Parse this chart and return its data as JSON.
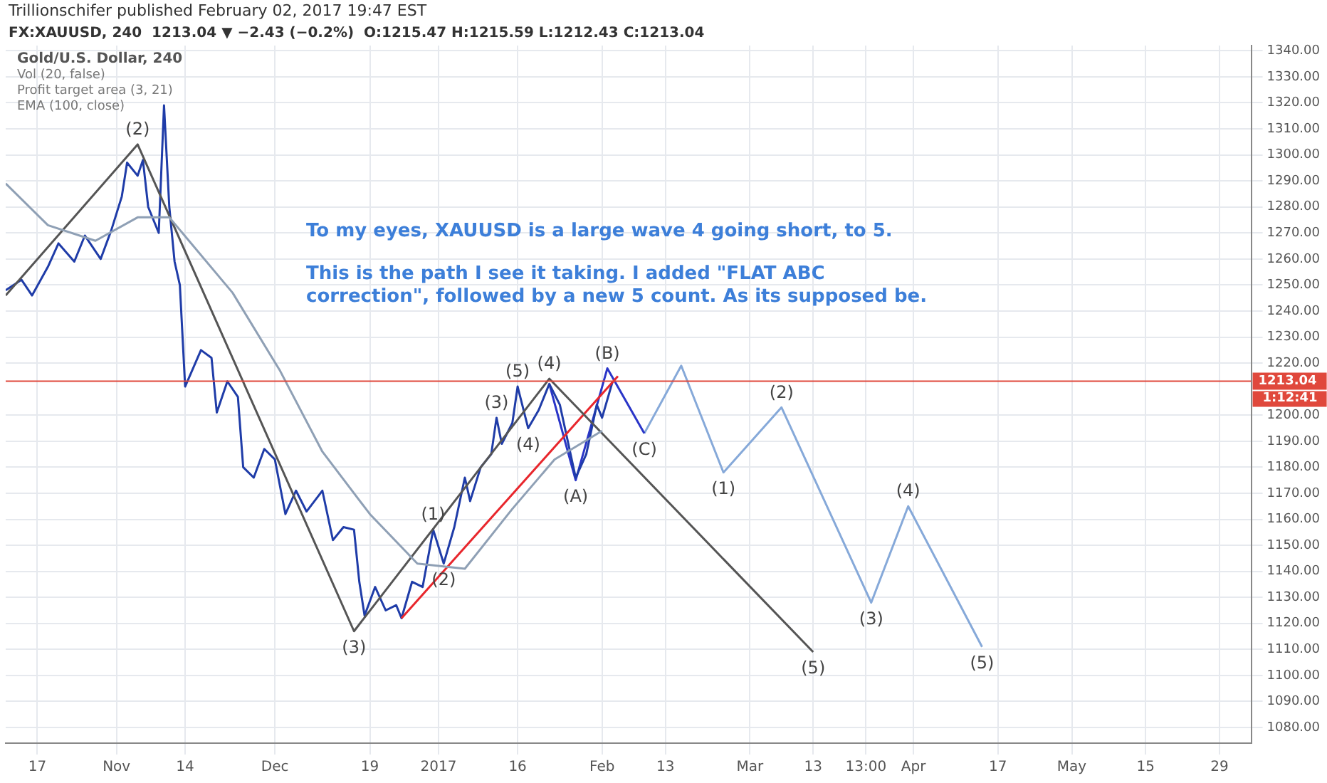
{
  "chart_data": {
    "type": "line",
    "title": "Gold/U.S. Dollar, 240",
    "subtitle": "FX:XAUUSD, 240  1213.04 ▼ −2.43 (−0.2%)  O:1215.47 H:1215.59 L:1212.43 C:1213.04",
    "annotations": [
      "Trillionschifer published February 02, 2017 19:47 EST",
      "Vol (20, false)",
      "Profit target area (3, 21)",
      "EMA (100, close)",
      "1:12:41",
      "To my eyes, XAUUSD is a large wave 4 going short, to 5.",
      "This is the path I see it taking. I added \"FLAT ABC correction\", followed by a new 5 count. As its supposed be.",
      {
        "text": "(2)",
        "x": "2016-11-05",
        "y": 1304
      },
      {
        "text": "(3)",
        "x": "2016-12-16",
        "y": 1117
      },
      {
        "text": "(4)",
        "x": "2017-01-22",
        "y": 1214
      },
      {
        "text": "(5)",
        "x": "2017-03-13",
        "y": 1109
      },
      {
        "text": "(1)",
        "x": "2016-12-31",
        "y": 1156
      },
      {
        "text": "(2)",
        "x": "2017-01-02",
        "y": 1143
      },
      {
        "text": "(3)",
        "x": "2017-01-12",
        "y": 1199
      },
      {
        "text": "(4)",
        "x": "2017-01-18",
        "y": 1195
      },
      {
        "text": "(5)",
        "x": "2017-01-16",
        "y": 1211
      },
      {
        "text": "(A)",
        "x": "2017-01-27",
        "y": 1175
      },
      {
        "text": "(B)",
        "x": "2017-02-02",
        "y": 1218
      },
      {
        "text": "(C)",
        "x": "2017-02-09",
        "y": 1193
      },
      {
        "text": "(1)",
        "x": "2017-02-24",
        "y": 1178
      },
      {
        "text": "(2)",
        "x": "2017-03-07",
        "y": 1203
      },
      {
        "text": "(3)",
        "x": "2017-03-24",
        "y": 1128
      },
      {
        "text": "(4)",
        "x": "2017-03-31",
        "y": 1165
      },
      {
        "text": "(5)",
        "x": "2017-04-14",
        "y": 1111
      }
    ],
    "xlim": [
      "2016-10-11",
      "2017-06-04"
    ],
    "xticks": [
      {
        "value": "2016-10-17",
        "label": "17"
      },
      {
        "value": "2016-11-01",
        "label": "Nov"
      },
      {
        "value": "2016-11-14",
        "label": "14"
      },
      {
        "value": "2016-12-01",
        "label": "Dec"
      },
      {
        "value": "2016-12-19",
        "label": "19"
      },
      {
        "value": "2017-01-01",
        "label": "2017"
      },
      {
        "value": "2017-01-16",
        "label": "16"
      },
      {
        "value": "2017-02-01",
        "label": "Feb"
      },
      {
        "value": "2017-02-13",
        "label": "13"
      },
      {
        "value": "2017-03-01",
        "label": "Mar"
      },
      {
        "value": "2017-03-13",
        "label": "13"
      },
      {
        "value": "2017-03-23",
        "label": "13:00"
      },
      {
        "value": "2017-04-01",
        "label": "Apr"
      },
      {
        "value": "2017-04-17",
        "label": "17"
      },
      {
        "value": "2017-05-01",
        "label": "May"
      },
      {
        "value": "2017-05-15",
        "label": "15"
      },
      {
        "value": "2017-05-29",
        "label": "29"
      }
    ],
    "ylim": [
      1074,
      1342
    ],
    "yticks": [
      {
        "value": 1080,
        "label": "1080.00"
      },
      {
        "value": 1090,
        "label": "1090.00"
      },
      {
        "value": 1100,
        "label": "1100.00"
      },
      {
        "value": 1110,
        "label": "1110.00"
      },
      {
        "value": 1120,
        "label": "1120.00"
      },
      {
        "value": 1130,
        "label": "1130.00"
      },
      {
        "value": 1140,
        "label": "1140.00"
      },
      {
        "value": 1150,
        "label": "1150.00"
      },
      {
        "value": 1160,
        "label": "1160.00"
      },
      {
        "value": 1170,
        "label": "1170.00"
      },
      {
        "value": 1180,
        "label": "1180.00"
      },
      {
        "value": 1190,
        "label": "1190.00"
      },
      {
        "value": 1200,
        "label": "1200.00"
      },
      {
        "value": 1220,
        "label": "1220.00"
      },
      {
        "value": 1230,
        "label": "1230.00"
      },
      {
        "value": 1240,
        "label": "1240.00"
      },
      {
        "value": 1250,
        "label": "1250.00"
      },
      {
        "value": 1260,
        "label": "1260.00"
      },
      {
        "value": 1270,
        "label": "1270.00"
      },
      {
        "value": 1280,
        "label": "1280.00"
      },
      {
        "value": 1290,
        "label": "1290.00"
      },
      {
        "value": 1300,
        "label": "1300.00"
      },
      {
        "value": 1310,
        "label": "1310.00"
      },
      {
        "value": 1320,
        "label": "1320.00"
      },
      {
        "value": 1330,
        "label": "1330.00"
      },
      {
        "value": 1340,
        "label": "1340.00"
      }
    ],
    "grid": true,
    "legend": false,
    "marker": "none",
    "line_style": "solid",
    "ref_lines": [
      {
        "axis": "y",
        "value": 1213.04,
        "label": "1213.04",
        "color": "#e0483c"
      }
    ],
    "series": [
      {
        "color": "#8fa0b5",
        "x": [
          "2016-10-11",
          "2016-10-19",
          "2016-10-28",
          "2016-11-05",
          "2016-11-11",
          "2016-11-23",
          "2016-12-02",
          "2016-12-10",
          "2016-12-19",
          "2016-12-28",
          "2017-01-06",
          "2017-01-15",
          "2017-01-23",
          "2017-02-01"
        ],
        "values": [
          1289,
          1273,
          1267,
          1276,
          1276,
          1247,
          1217,
          1186,
          1162,
          1143,
          1141,
          1164,
          1183,
          1194
        ]
      },
      {
        "color": "#555555",
        "x": [
          "2016-10-11",
          "2016-11-05",
          "2016-12-16",
          "2017-01-22",
          "2017-03-13"
        ],
        "values": [
          1246,
          1304,
          1117,
          1214,
          1109
        ]
      },
      {
        "color": "#e8262c",
        "x": [
          "2016-12-25",
          "2017-02-04"
        ],
        "values": [
          1122,
          1215
        ]
      },
      {
        "color": "#1f3ca8",
        "x": [
          "2016-10-11",
          "2016-10-14",
          "2016-10-16",
          "2016-10-19",
          "2016-10-21",
          "2016-10-24",
          "2016-10-26",
          "2016-10-29",
          "2016-10-31",
          "2016-11-02",
          "2016-11-03",
          "2016-11-05",
          "2016-11-06",
          "2016-11-07",
          "2016-11-09",
          "2016-11-10",
          "2016-11-11",
          "2016-11-12",
          "2016-11-13",
          "2016-11-14",
          "2016-11-17",
          "2016-11-19",
          "2016-11-20",
          "2016-11-22",
          "2016-11-24",
          "2016-11-25",
          "2016-11-27",
          "2016-11-29",
          "2016-12-01",
          "2016-12-03",
          "2016-12-05",
          "2016-12-07",
          "2016-12-10",
          "2016-12-12",
          "2016-12-14",
          "2016-12-16",
          "2016-12-17",
          "2016-12-18",
          "2016-12-20",
          "2016-12-22",
          "2016-12-24",
          "2016-12-25",
          "2016-12-27",
          "2016-12-29",
          "2016-12-31",
          "2017-01-02",
          "2017-01-04",
          "2017-01-06",
          "2017-01-07",
          "2017-01-09",
          "2017-01-11",
          "2017-01-12",
          "2017-01-13",
          "2017-01-15",
          "2017-01-16",
          "2017-01-18",
          "2017-01-20",
          "2017-01-22",
          "2017-01-24",
          "2017-01-27",
          "2017-01-29",
          "2017-01-31",
          "2017-02-01",
          "2017-02-03"
        ],
        "values": [
          1248,
          1252,
          1246,
          1257,
          1266,
          1259,
          1269,
          1260,
          1271,
          1284,
          1297,
          1292,
          1298,
          1280,
          1270,
          1319,
          1280,
          1259,
          1250,
          1211,
          1225,
          1222,
          1201,
          1213,
          1207,
          1180,
          1176,
          1187,
          1183,
          1162,
          1171,
          1163,
          1171,
          1152,
          1157,
          1156,
          1136,
          1123,
          1134,
          1125,
          1127,
          1122,
          1136,
          1134,
          1156,
          1143,
          1157,
          1176,
          1167,
          1180,
          1185,
          1199,
          1189,
          1197,
          1211,
          1195,
          1202,
          1212,
          1204,
          1176,
          1185,
          1204,
          1199,
          1213
        ]
      },
      {
        "color": "#2a35c8",
        "x": [
          "2017-01-22",
          "2017-01-27",
          "2017-02-02",
          "2017-02-09"
        ],
        "values": [
          1212,
          1175,
          1218,
          1193
        ]
      },
      {
        "color": "#86a9d9",
        "x": [
          "2017-02-09",
          "2017-02-16",
          "2017-02-24",
          "2017-03-07",
          "2017-03-24",
          "2017-03-31",
          "2017-04-14"
        ],
        "values": [
          1193,
          1219,
          1178,
          1203,
          1128,
          1165,
          1111
        ]
      }
    ]
  }
}
